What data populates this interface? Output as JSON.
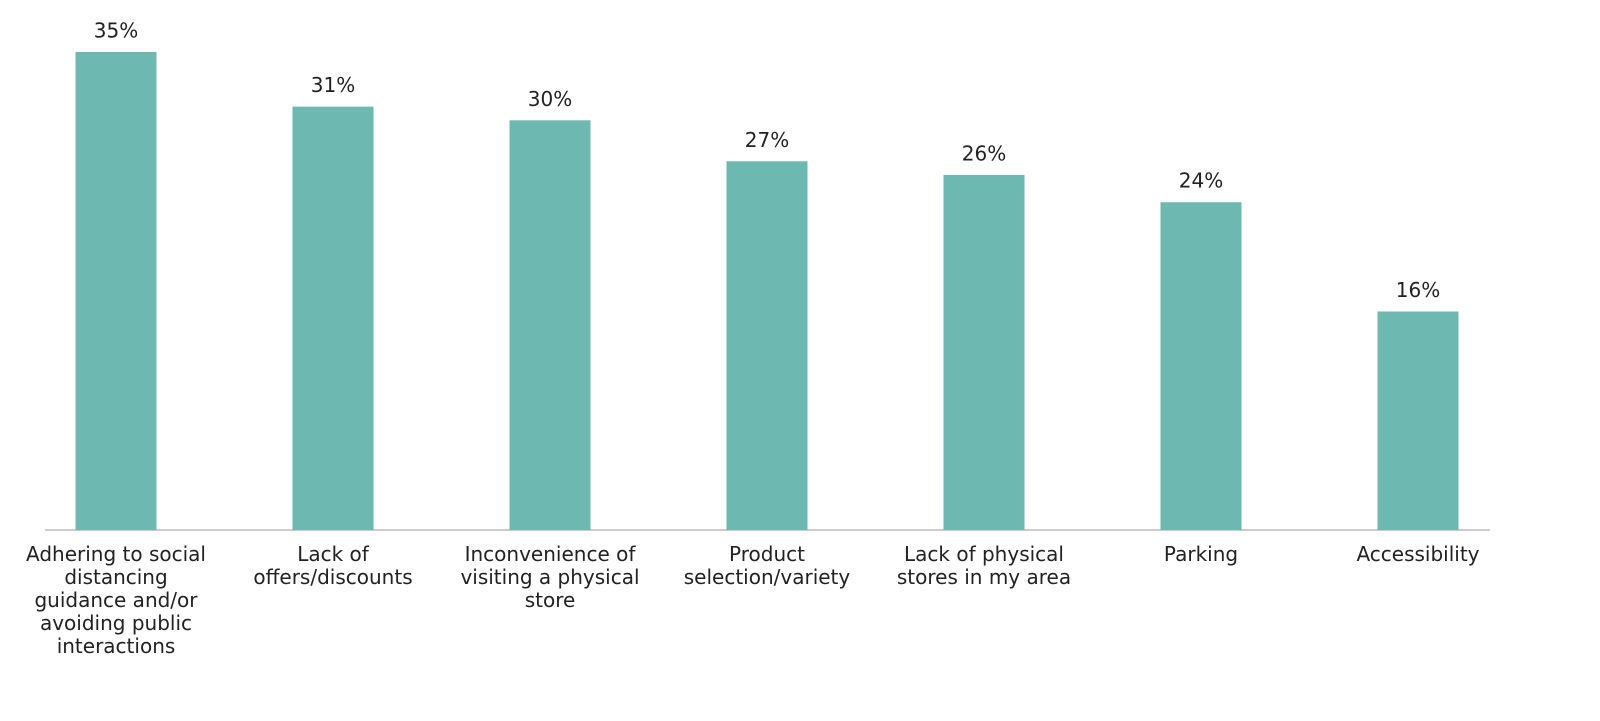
{
  "chart_data": {
    "type": "bar",
    "categories": [
      "Adhering to social distancing guidance and/or avoiding public interactions",
      "Lack of offers/discounts",
      "Inconvenience of visiting a physical store",
      "Product selection/variety",
      "Lack of physical stores in my area",
      "Parking",
      "Accessibility"
    ],
    "values": [
      35,
      31,
      30,
      27,
      26,
      24,
      16
    ],
    "value_labels": [
      "35%",
      "31%",
      "30%",
      "27%",
      "26%",
      "24%",
      "16%"
    ],
    "color": "#6db9b2",
    "ylim": [
      0,
      35
    ]
  }
}
